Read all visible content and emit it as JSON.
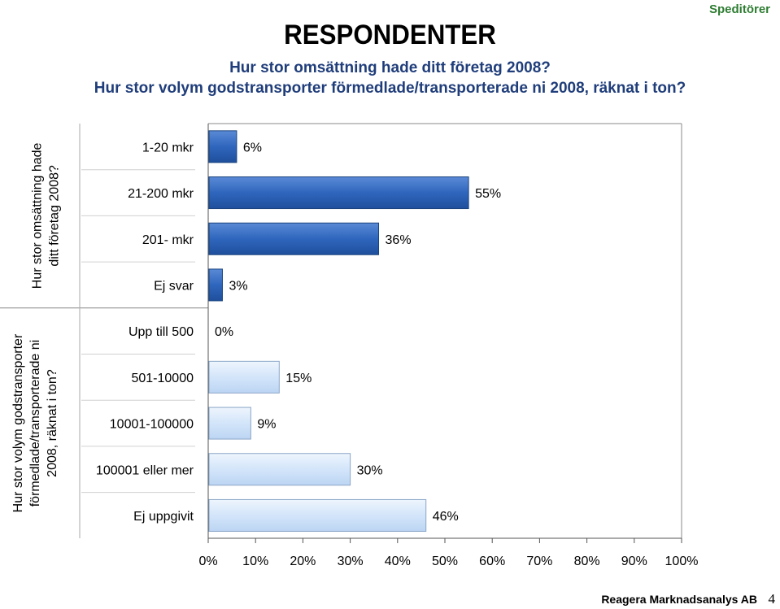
{
  "header": {
    "brand": "Speditörer",
    "title": "RESPONDENTER",
    "subtitle1": "Hur stor omsättning hade ditt företag 2008?",
    "subtitle2": "Hur stor volym godstransporter förmedlade/transporterade ni 2008, räknat i ton?"
  },
  "footer": {
    "company": "Reagera Marknadsanalys AB",
    "page": "4"
  },
  "chart_data": {
    "type": "bar",
    "orientation": "horizontal",
    "xlim": [
      0,
      100
    ],
    "x_ticks": [
      "0%",
      "10%",
      "20%",
      "30%",
      "40%",
      "50%",
      "60%",
      "70%",
      "80%",
      "90%",
      "100%"
    ],
    "grid": false,
    "groups": [
      {
        "label": "Hur stor omsättning hade ditt företag 2008?",
        "color": "#2e63b8",
        "categories": [
          "1-20 mkr",
          "21-200 mkr",
          "201- mkr",
          "Ej svar"
        ],
        "values": [
          6,
          55,
          36,
          3
        ],
        "value_labels": [
          "6%",
          "55%",
          "36%",
          "3%"
        ]
      },
      {
        "label": "Hur stor volym godstransporter förmedlade/transporterade ni 2008, räknat i ton?",
        "color": "#d6e7fb",
        "categories": [
          "Upp till 500",
          "501-10000",
          "10001-100000",
          "100001 eller mer",
          "Ej uppgivit"
        ],
        "values": [
          0,
          15,
          9,
          30,
          46
        ],
        "value_labels": [
          "0%",
          "15%",
          "9%",
          "30%",
          "46%"
        ]
      }
    ]
  }
}
